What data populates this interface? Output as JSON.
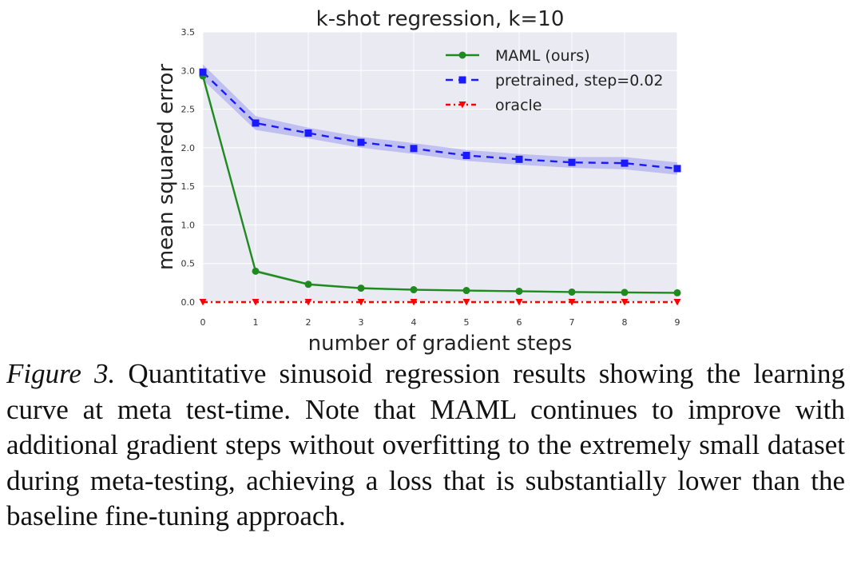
{
  "chart_data": {
    "type": "line",
    "title": "k-shot regression, k=10",
    "xlabel": "number of gradient steps",
    "ylabel": "mean squared error",
    "xlim": [
      0,
      9
    ],
    "ylim": [
      0,
      3.5
    ],
    "xticks": [
      "0",
      "1",
      "2",
      "3",
      "4",
      "5",
      "6",
      "7",
      "8",
      "9"
    ],
    "yticks": [
      "0.0",
      "0.5",
      "1.0",
      "1.5",
      "2.0",
      "2.5",
      "3.0",
      "3.5"
    ],
    "grid": true,
    "legend_position": "top-right",
    "x": [
      0,
      1,
      2,
      3,
      4,
      5,
      6,
      7,
      8,
      9
    ],
    "series": [
      {
        "name": "MAML (ours)",
        "color": "#1f8a1f",
        "marker": "circle",
        "linestyle": "solid",
        "values": [
          2.93,
          0.4,
          0.23,
          0.18,
          0.16,
          0.15,
          0.14,
          0.13,
          0.125,
          0.12
        ],
        "band": [
          0.05,
          0.02,
          0.015,
          0.012,
          0.01,
          0.01,
          0.01,
          0.01,
          0.01,
          0.01
        ]
      },
      {
        "name": "pretrained, step=0.02",
        "color": "#1a1aff",
        "band_color": "#9b9bf0",
        "marker": "square",
        "linestyle": "dashed",
        "values": [
          2.98,
          2.32,
          2.19,
          2.07,
          1.99,
          1.9,
          1.85,
          1.81,
          1.8,
          1.73
        ],
        "band": [
          0.1,
          0.09,
          0.07,
          0.07,
          0.07,
          0.07,
          0.07,
          0.07,
          0.08,
          0.08
        ]
      },
      {
        "name": "oracle",
        "color": "#ff0000",
        "marker": "triangle-down",
        "linestyle": "dashdot",
        "values": [
          0,
          0,
          0,
          0,
          0,
          0,
          0,
          0,
          0,
          0
        ]
      }
    ]
  },
  "caption": {
    "label": "Figure 3.",
    "text": "Quantitative sinusoid regression results showing the learning curve at meta test-time. Note that MAML continues to improve with additional gradient steps without overfitting to the extremely small dataset during meta-testing, achieving a loss that is substantially lower than the baseline fine-tuning approach."
  }
}
